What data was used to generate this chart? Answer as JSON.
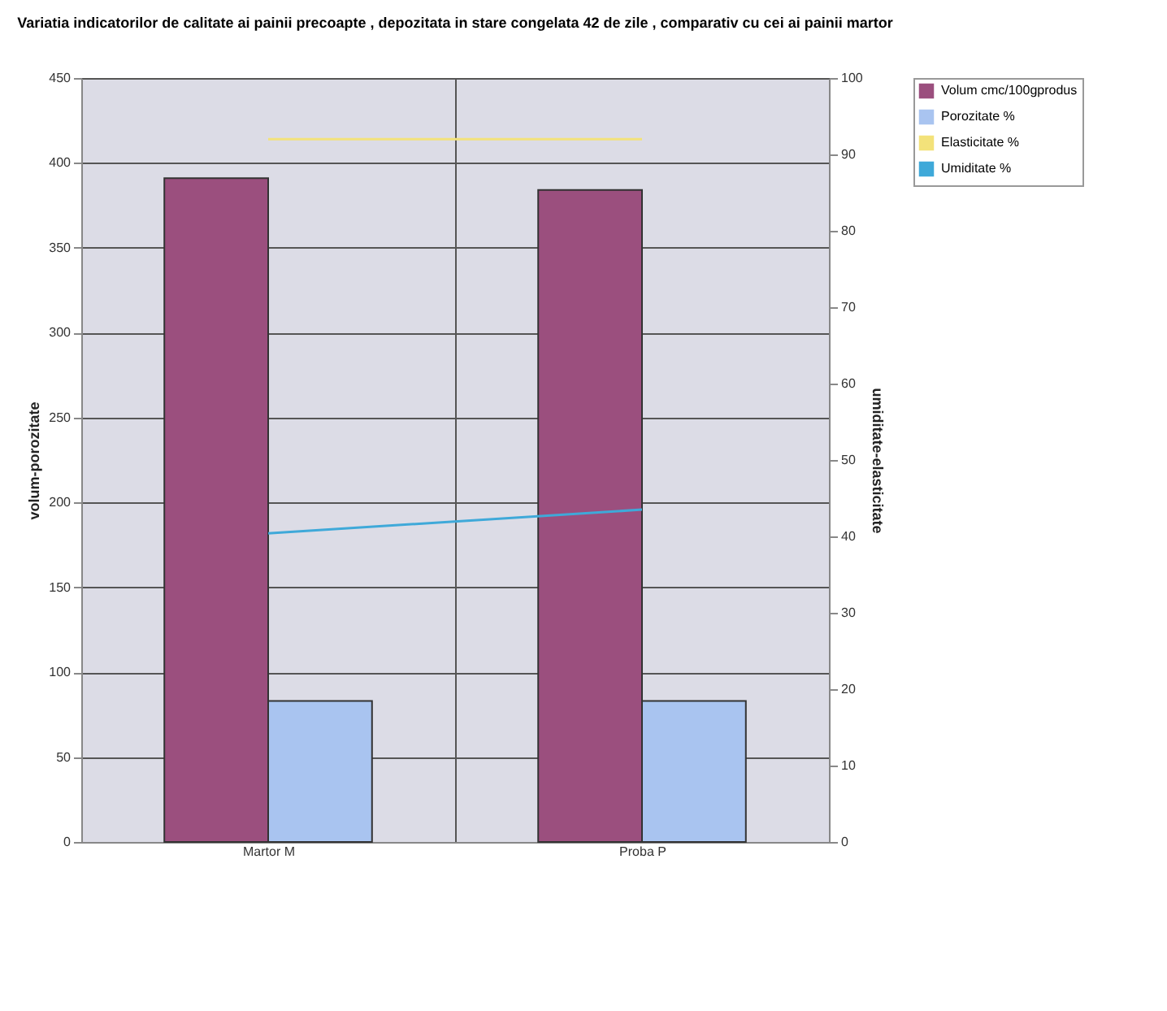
{
  "chart_data": {
    "type": "bar",
    "title": "Variatia indicatorilor de calitate ai painii precoapte , depozitata in stare congelata 42 de zile , comparativ cu cei ai painii martor",
    "categories": [
      "Martor M",
      "Proba P"
    ],
    "ylabel": "volum-porozitate",
    "y2label": "umiditate-elasticitate",
    "ylim": [
      0,
      450
    ],
    "yticks": [
      0,
      50,
      100,
      150,
      200,
      250,
      300,
      350,
      400,
      450
    ],
    "y2lim": [
      0,
      100
    ],
    "y2ticks": [
      0,
      10,
      20,
      30,
      40,
      50,
      60,
      70,
      80,
      90,
      100
    ],
    "grid": true,
    "legend": "right",
    "series": [
      {
        "name": "Volum cmc/100gprodus",
        "color": "#9b4f7e",
        "values": [
          391,
          384
        ]
      },
      {
        "name": "Porozitate %",
        "color": "#a9c4f0",
        "values": [
          83,
          83
        ]
      },
      {
        "name": "Elasticitate %",
        "type": "line",
        "axis": "y2",
        "color": "#f3e27a",
        "values": [
          92,
          92
        ]
      },
      {
        "name": "Umiditate %",
        "type": "line",
        "axis": "y2",
        "color": "#3fa9d9",
        "values": [
          40.4,
          43.5
        ]
      }
    ]
  }
}
